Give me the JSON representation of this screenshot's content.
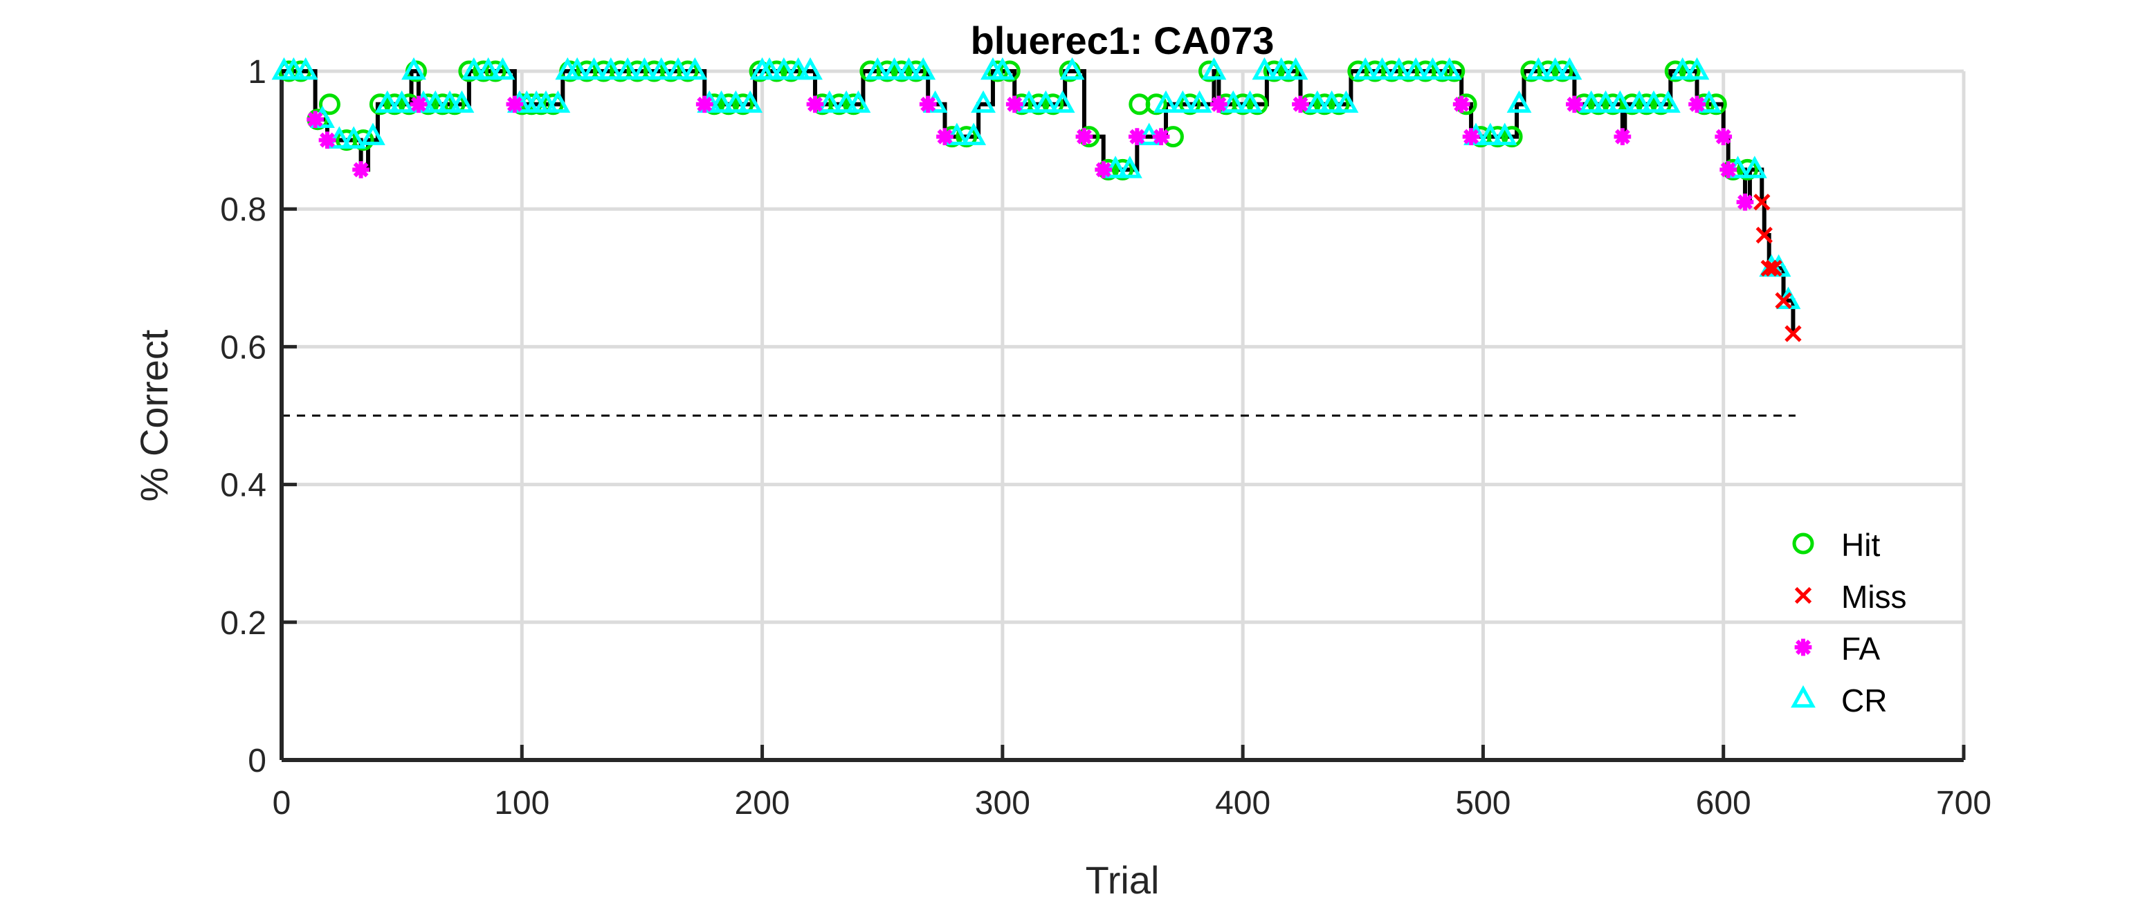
{
  "chart_data": {
    "type": "line",
    "title": "bluerec1: CA073",
    "xlabel": "Trial",
    "ylabel": "% Correct",
    "xlim": [
      0,
      700
    ],
    "ylim": [
      0,
      1
    ],
    "xticks": [
      0,
      100,
      200,
      300,
      400,
      500,
      600,
      700
    ],
    "yticks": [
      0,
      0.2,
      0.4,
      0.6,
      0.8,
      1
    ],
    "ytick_labels": [
      "0",
      "0.2",
      "0.4",
      "0.6",
      "0.8",
      "1"
    ],
    "grid": true,
    "legend_position": "bottom-right",
    "chance_line": {
      "y": 0.5,
      "x_range": [
        0,
        630
      ],
      "style": "dashed"
    },
    "performance_steps": [
      [
        0,
        1
      ],
      [
        14,
        0.93
      ],
      [
        19,
        0.9
      ],
      [
        33,
        0.857
      ],
      [
        36,
        0.9
      ],
      [
        40,
        0.952
      ],
      [
        54,
        1
      ],
      [
        57,
        0.952
      ],
      [
        78,
        1
      ],
      [
        97,
        0.952
      ],
      [
        117,
        1
      ],
      [
        176,
        0.952
      ],
      [
        197,
        1
      ],
      [
        222,
        0.952
      ],
      [
        242,
        1
      ],
      [
        269,
        0.952
      ],
      [
        276,
        0.905
      ],
      [
        290,
        0.952
      ],
      [
        296,
        1
      ],
      [
        305,
        0.952
      ],
      [
        326,
        1
      ],
      [
        334,
        0.905
      ],
      [
        342,
        0.857
      ],
      [
        356,
        0.905
      ],
      [
        368,
        0.952
      ],
      [
        388,
        1
      ],
      [
        390,
        0.952
      ],
      [
        410,
        1
      ],
      [
        424,
        0.952
      ],
      [
        445,
        1
      ],
      [
        491,
        0.952
      ],
      [
        495,
        0.905
      ],
      [
        514,
        0.952
      ],
      [
        517,
        1
      ],
      [
        538,
        0.952
      ],
      [
        558,
        0.905
      ],
      [
        559,
        0.952
      ],
      [
        578,
        1
      ],
      [
        589,
        0.952
      ],
      [
        600,
        0.905
      ],
      [
        602,
        0.857
      ],
      [
        609,
        0.81
      ],
      [
        611,
        0.857
      ],
      [
        616,
        0.81
      ],
      [
        617,
        0.762
      ],
      [
        619,
        0.714
      ],
      [
        625,
        0.667
      ],
      [
        629,
        0.619
      ]
    ],
    "series": [
      {
        "name": "Hit",
        "color": "#00e000",
        "marker": "circle",
        "x": [
          3,
          8,
          15,
          20,
          27,
          34,
          41,
          47,
          53,
          56,
          61,
          67,
          72,
          78,
          84,
          89,
          100,
          104,
          108,
          113,
          120,
          127,
          134,
          141,
          148,
          155,
          162,
          169,
          180,
          186,
          192,
          199,
          206,
          212,
          225,
          232,
          238,
          245,
          252,
          258,
          264,
          279,
          285,
          298,
          303,
          308,
          315,
          321,
          328,
          336,
          344,
          350,
          357,
          364,
          371,
          378,
          386,
          393,
          400,
          406,
          413,
          419,
          428,
          434,
          440,
          448,
          455,
          462,
          469,
          476,
          483,
          488,
          493,
          499,
          506,
          512,
          520,
          527,
          533,
          542,
          548,
          554,
          562,
          568,
          574,
          580,
          586,
          592,
          597,
          604,
          610
        ],
        "y": [
          1,
          1,
          0.93,
          0.952,
          0.9,
          0.9,
          0.952,
          0.952,
          0.952,
          1,
          0.952,
          0.952,
          0.952,
          1,
          1,
          1,
          0.952,
          0.952,
          0.952,
          0.952,
          1,
          1,
          1,
          1,
          1,
          1,
          1,
          1,
          0.952,
          0.952,
          0.952,
          1,
          1,
          1,
          0.952,
          0.952,
          0.952,
          1,
          1,
          1,
          1,
          0.905,
          0.905,
          1,
          1,
          0.952,
          0.952,
          0.952,
          1,
          0.905,
          0.857,
          0.857,
          0.952,
          0.952,
          0.905,
          0.952,
          1,
          0.952,
          0.952,
          0.952,
          1,
          1,
          0.952,
          0.952,
          0.952,
          1,
          1,
          1,
          1,
          1,
          1,
          1,
          0.952,
          0.905,
          0.905,
          0.905,
          1,
          1,
          1,
          0.952,
          0.952,
          0.952,
          0.952,
          0.952,
          0.952,
          1,
          1,
          0.952,
          0.952,
          0.857,
          0.857
        ]
      },
      {
        "name": "Miss",
        "color": "#ff0000",
        "marker": "x",
        "x": [
          616,
          617,
          619,
          621,
          625,
          629
        ],
        "y": [
          0.81,
          0.762,
          0.714,
          0.714,
          0.667,
          0.619
        ]
      },
      {
        "name": "FA",
        "color": "#ff00ff",
        "marker": "asterisk",
        "x": [
          14,
          19,
          33,
          57,
          97,
          176,
          222,
          269,
          276,
          305,
          334,
          342,
          356,
          366,
          390,
          424,
          491,
          495,
          538,
          558,
          589,
          600,
          602,
          609
        ],
        "y": [
          0.93,
          0.9,
          0.857,
          0.952,
          0.952,
          0.952,
          0.952,
          0.952,
          0.905,
          0.952,
          0.905,
          0.857,
          0.905,
          0.905,
          0.952,
          0.952,
          0.952,
          0.905,
          0.952,
          0.905,
          0.952,
          0.905,
          0.857,
          0.81
        ]
      },
      {
        "name": "CR",
        "color": "#00ffff",
        "marker": "triangle",
        "x": [
          1,
          5,
          10,
          17,
          24,
          30,
          38,
          44,
          50,
          55,
          59,
          64,
          70,
          75,
          80,
          86,
          92,
          99,
          102,
          106,
          110,
          115,
          119,
          123,
          130,
          137,
          144,
          151,
          158,
          165,
          172,
          178,
          183,
          189,
          195,
          200,
          203,
          209,
          215,
          220,
          228,
          235,
          240,
          248,
          255,
          261,
          267,
          272,
          281,
          288,
          292,
          296,
          300,
          311,
          318,
          325,
          329,
          347,
          353,
          361,
          368,
          375,
          382,
          388,
          396,
          403,
          409,
          416,
          422,
          431,
          437,
          443,
          451,
          458,
          465,
          472,
          479,
          486,
          497,
          503,
          509,
          515,
          523,
          530,
          536,
          545,
          551,
          557,
          565,
          571,
          577,
          583,
          589,
          594,
          606,
          613,
          620,
          623,
          627
        ],
        "y": [
          1,
          1,
          1,
          0.93,
          0.9,
          0.9,
          0.905,
          0.952,
          0.952,
          1,
          0.952,
          0.952,
          0.952,
          0.952,
          1,
          1,
          1,
          0.952,
          0.952,
          0.952,
          0.952,
          0.952,
          1,
          1,
          1,
          1,
          1,
          1,
          1,
          1,
          1,
          0.952,
          0.952,
          0.952,
          0.952,
          1,
          1,
          1,
          1,
          1,
          0.952,
          0.952,
          0.952,
          1,
          1,
          1,
          1,
          0.952,
          0.905,
          0.905,
          0.952,
          1,
          1,
          0.952,
          0.952,
          0.952,
          1,
          0.857,
          0.857,
          0.905,
          0.952,
          0.952,
          0.952,
          1,
          0.952,
          0.952,
          1,
          1,
          1,
          0.952,
          0.952,
          0.952,
          1,
          1,
          1,
          1,
          1,
          1,
          0.905,
          0.905,
          0.905,
          0.952,
          1,
          1,
          1,
          0.952,
          0.952,
          0.952,
          0.952,
          0.952,
          0.952,
          1,
          1,
          0.952,
          0.857,
          0.857,
          0.714,
          0.714,
          0.667
        ]
      }
    ]
  }
}
